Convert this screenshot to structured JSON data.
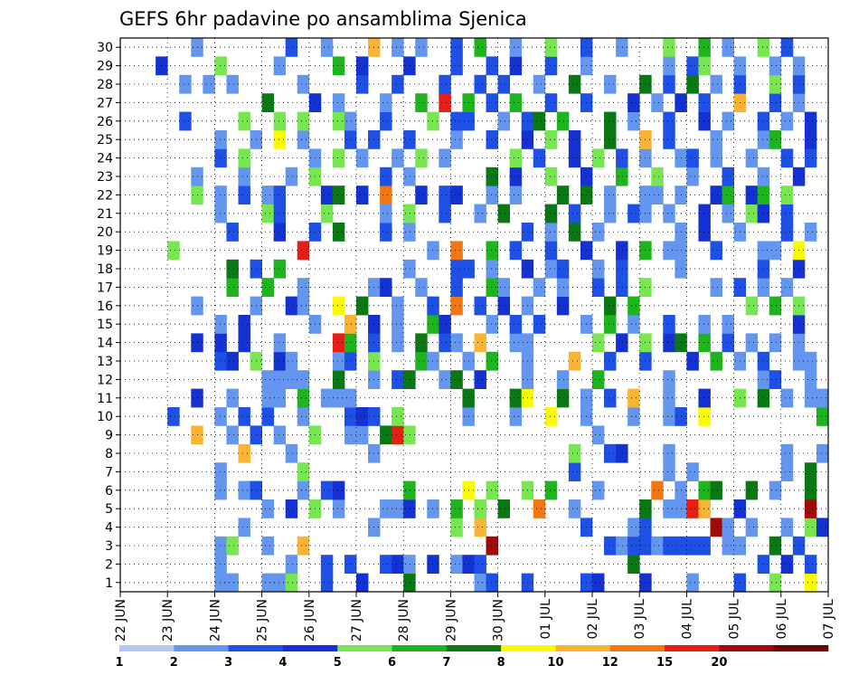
{
  "chart_data": {
    "type": "heatmap",
    "title": "GEFS 6hr padavine po ansamblima Sjenica",
    "x_tick_labels": [
      "22 JUN",
      "23 JUN",
      "24 JUN",
      "25 JUN",
      "26 JUN",
      "27 JUN",
      "28 JUN",
      "29 JUN",
      "30 JUN",
      "01 JUL",
      "02 JUL",
      "03 JUL",
      "04 JUL",
      "05 JUL",
      "06 JUL",
      "07 JUL"
    ],
    "y_tick_labels": [
      "1",
      "2",
      "3",
      "4",
      "5",
      "6",
      "7",
      "8",
      "9",
      "10",
      "11",
      "12",
      "13",
      "14",
      "15",
      "16",
      "17",
      "18",
      "19",
      "20",
      "21",
      "22",
      "23",
      "24",
      "25",
      "26",
      "27",
      "28",
      "29",
      "30"
    ],
    "n_columns": 60,
    "members": 30,
    "grid": "dotted",
    "colorbar": {
      "labels": [
        "1",
        "2",
        "3",
        "4",
        "5",
        "6",
        "7",
        "8",
        "10",
        "12",
        "15",
        "20"
      ],
      "colors": [
        "#b4c8f0",
        "#6496f0",
        "#1e50e6",
        "#1432d2",
        "#78e650",
        "#1eb41e",
        "#0a7814",
        "#fafa00",
        "#fab432",
        "#f07814",
        "#e61e14",
        "#a00a0a",
        "#6e0000"
      ]
    },
    "legend_chars": ".123456789ABC",
    "rows": [
      "        11  114  2  3   6     12  2    23   3   1   2  4  7",
      "        1     1  2 2  231 3 132  0         6          2 3 2",
      "        14  1  8               B         212212222 11  6 2",
      "          1          1      4 8        2   12     B1 1  1 43",
      "            1 3 4 1   113 1 5 4 6  9  1     6 11A8  3     B",
      "        1 12   1 23     5    7 4  4 5   1    9 1 56  6 1  6",
      "        1      4                      2       1 1       1 6",
      "          8   1      1                4  23   1         1  1",
      "      8  1 2 1  4  11 6A4               1                   ",
      "    2   1 2 2  1   232 4     1   1  7  1   1  12 7         5",
      "      3  1  11 5 111         6   67  6 1 2 8  1  3  4 6 1 11",
      "            1111  6  1 26  16 3   1  1  5     1       12  1 ",
      "        23 4 31   12 4   51  1 5  1   8  2  2   3 5 1 2  11",
      "      3 3 3  1    A5 2 1 6 21 8  11     4 3 4 36 5 2 1 1 1",
      "        1 3     1  8 3 1  53   1 2 2   1 5 1  2  1 1     3 ",
      "      1    1  31  7 6  1  2 9 2 3 1  3   6 5         4 5 4 ",
      "         5  5  1     13  1  2  51  1 1  2 2 4     1 2 1 1  ",
      "         6 2 5          1   22 1  3 12  1 2    1      2  3 ",
      "    4          A          1 9  5 2  2  3  3 5 11  2   11 7 ",
      "         2   3  2 6   2 1         2 1 6 1      1 3  1   2 1",
      "        1   42   4    1 4  2  1 6   6 2  1 21 1  3 1 43 2  ",
      "      4 1 2 12   36 3 9  3 23  1 1   6 6 1  11 1  35 35 4  ",
      "      1   1   1 4     2 1      6 3  4  3  5  4  1  2  1  3 ",
      "        2 4     1 4 1  1 4 1     4 2  3 4 2 1  12 1  1  2 2",
      "        1  1 7 1   2 2  2   1  2  3 4 3  6  8 2   1   15  3",
      "     2    4  4 4  41  2   4 22  1 26 5   6 1  2  3 1  2 1 3",
      "            6   3 1   1  5 A 5 2 5  2  2   3 1 3 2  8  2 1 ",
      "     1 1 1     1    2  2   2  2 2  1  6  1  6 2 6 1 2  4 2 ",
      "   3    4    1    5 3   3   2  2 3  2  1      1 24  1  1 1 ",
      "      1       2  1   8 1 1  2 5  1  4  2  1   4  5 1  4 2  "
    ]
  }
}
